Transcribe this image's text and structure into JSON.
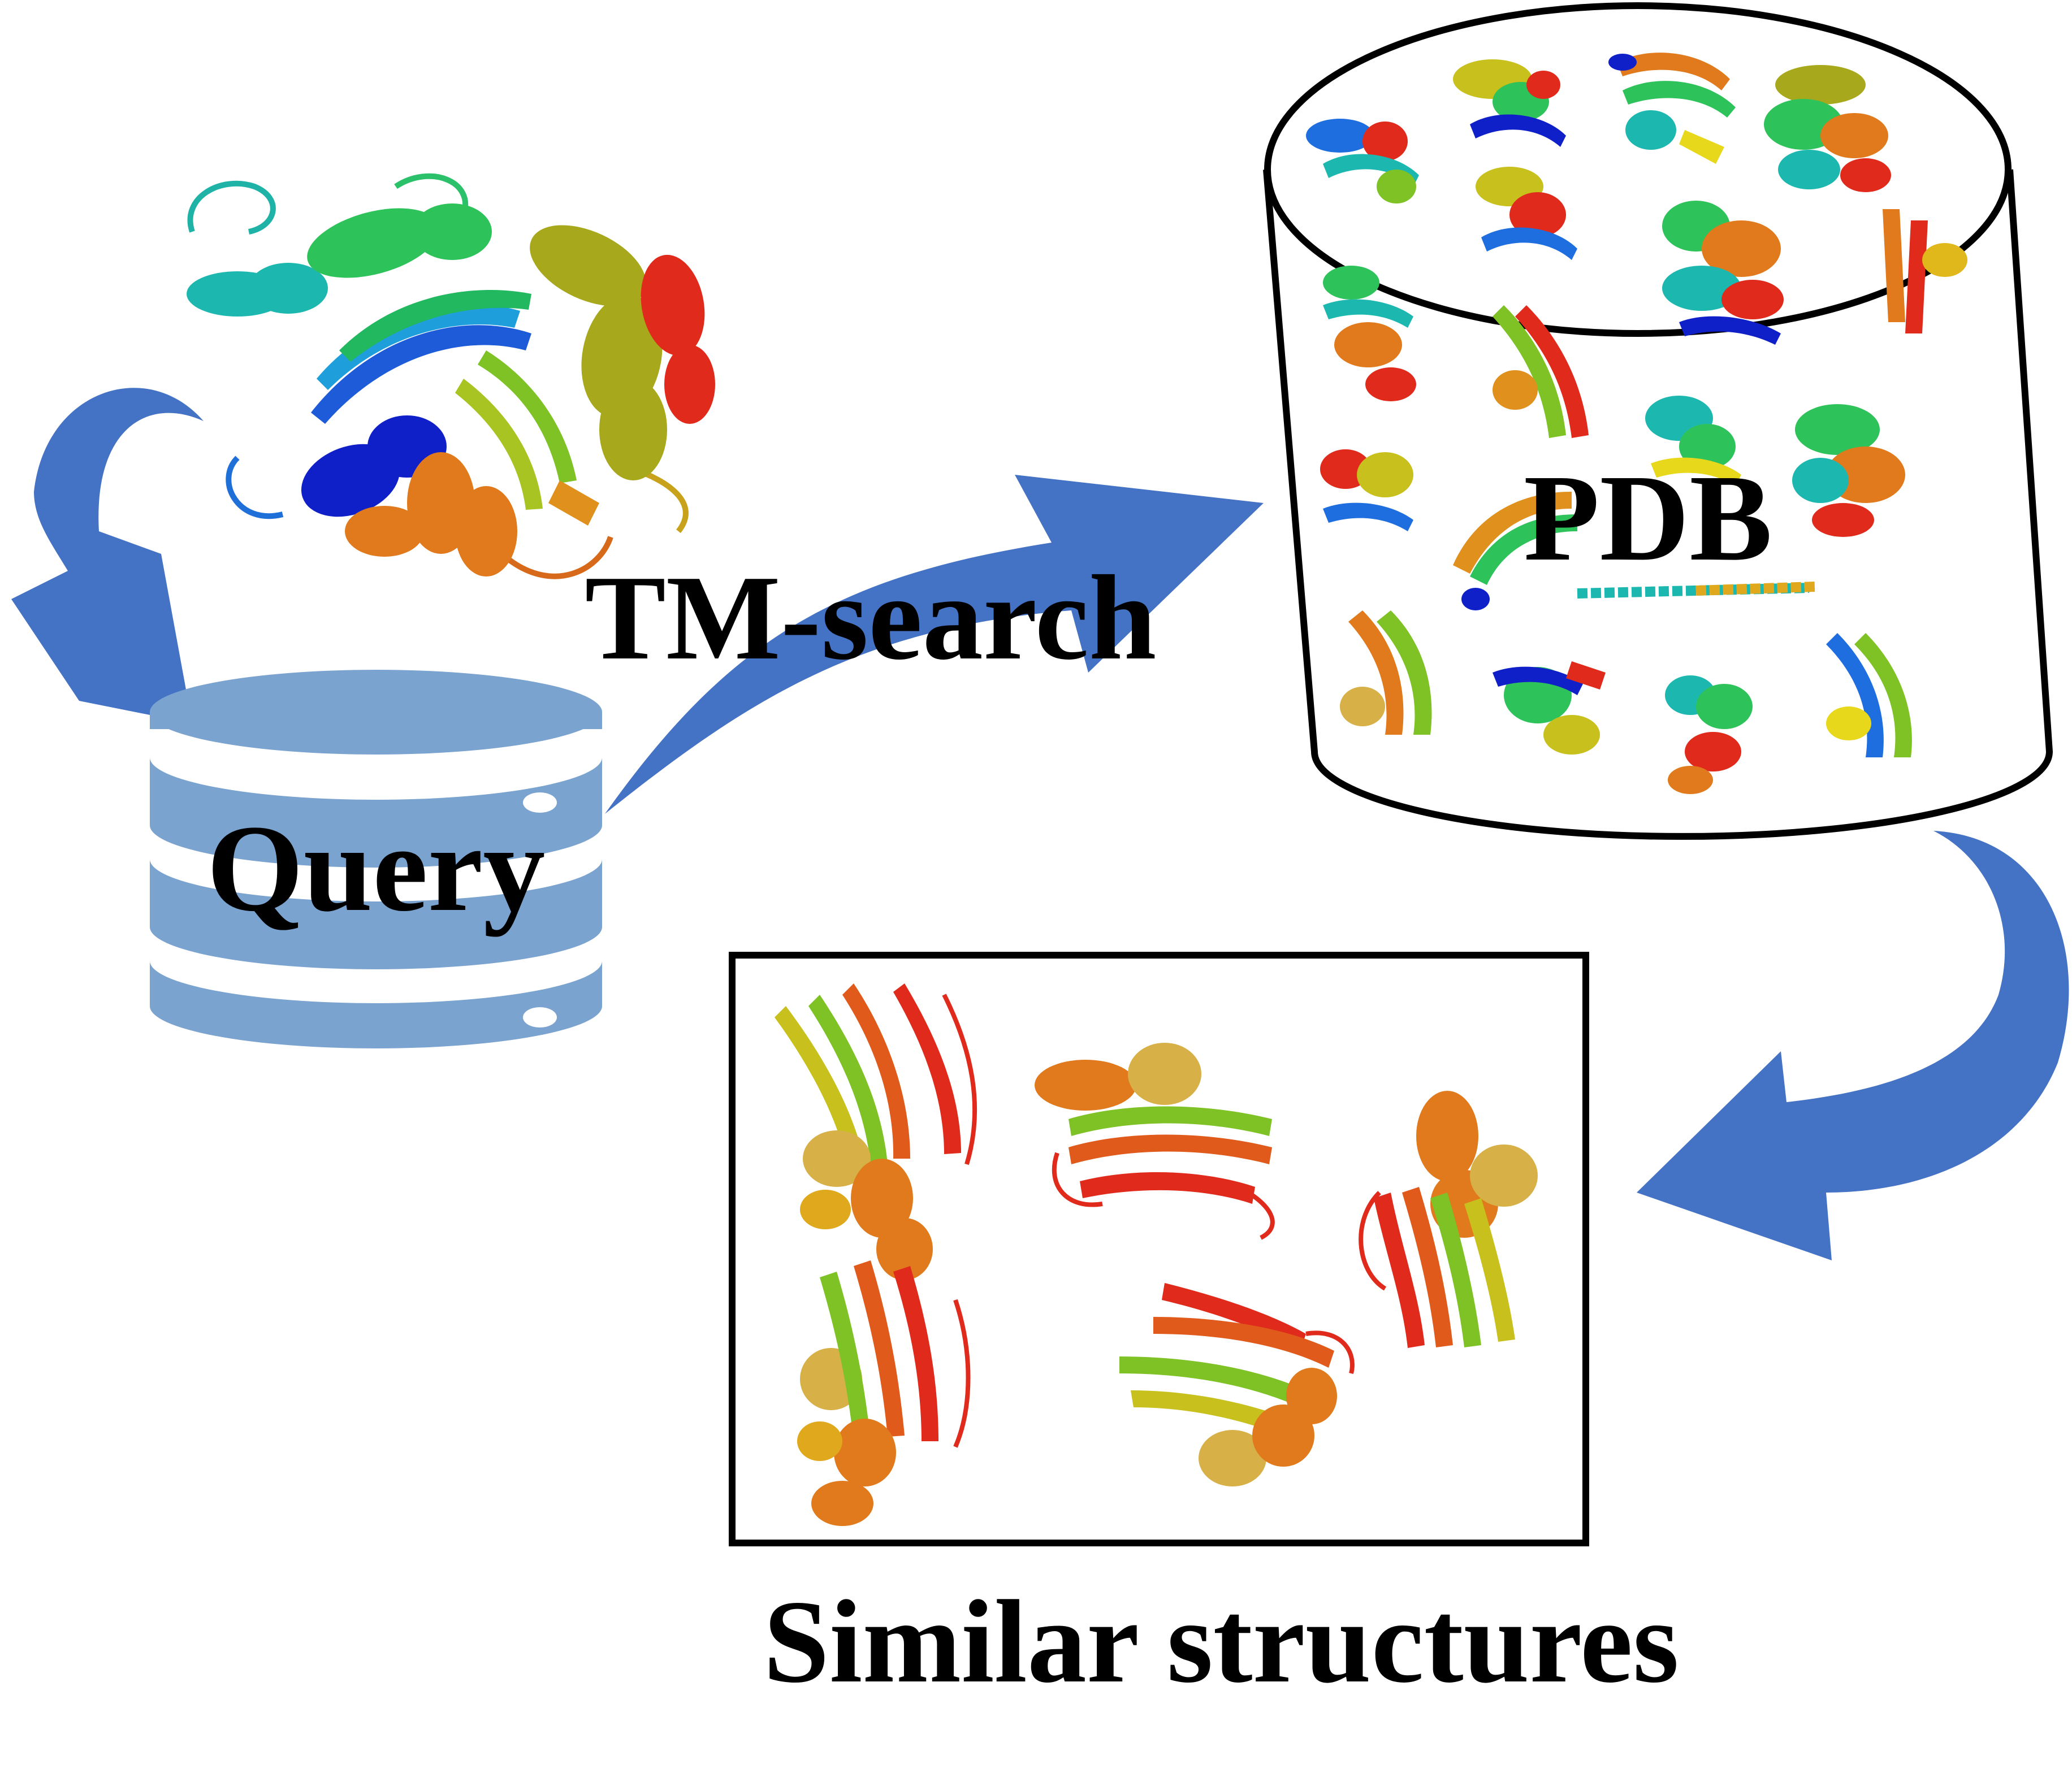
{
  "labels": {
    "query": "Query",
    "method": "TM-search",
    "database": "PDB",
    "result": "Similar structures"
  },
  "colors": {
    "arrow": "#4472C4",
    "query_db": "#7BA3CF",
    "text": "#000000",
    "outline": "#000000"
  },
  "icons": {
    "query_db": "database-icon",
    "pdb": "cylinder-icon",
    "proteins": "protein-ribbon-icon"
  }
}
